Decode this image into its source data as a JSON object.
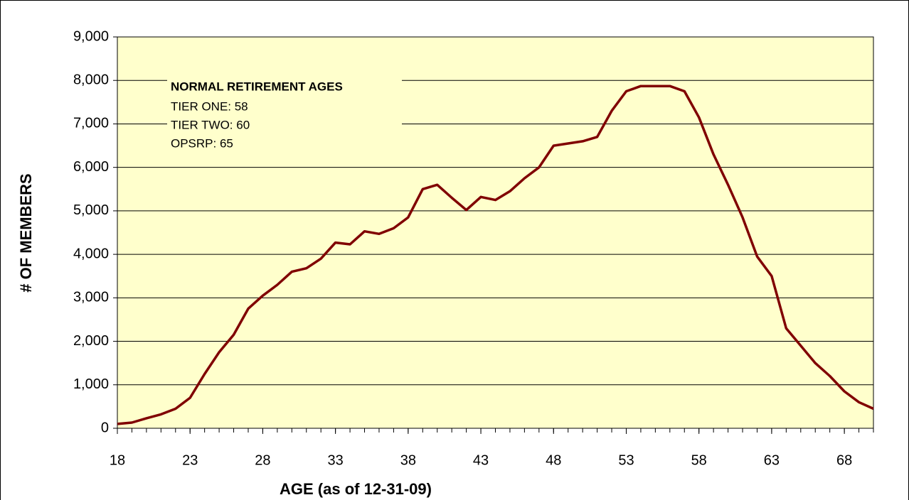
{
  "chart_data": {
    "type": "line",
    "x_label": "AGE (as of 12-31-09)",
    "y_label": "# OF MEMBERS",
    "annotation": {
      "title": "NORMAL RETIREMENT AGES",
      "lines": [
        "TIER ONE: 58",
        "TIER TWO: 60",
        "OPSRP: 65"
      ]
    },
    "x": [
      18,
      19,
      20,
      21,
      22,
      23,
      24,
      25,
      26,
      27,
      28,
      29,
      30,
      31,
      32,
      33,
      34,
      35,
      36,
      37,
      38,
      39,
      40,
      41,
      42,
      43,
      44,
      45,
      46,
      47,
      48,
      49,
      50,
      51,
      52,
      53,
      54,
      55,
      56,
      57,
      58,
      59,
      60,
      61,
      62,
      63,
      64,
      65,
      66,
      67,
      68,
      69,
      70
    ],
    "series": [
      {
        "name": "Members",
        "color": "#800000",
        "values": [
          100,
          130,
          230,
          320,
          450,
          700,
          1250,
          1750,
          2150,
          2750,
          3050,
          3300,
          3600,
          3680,
          3900,
          4270,
          4230,
          4530,
          4470,
          4600,
          4850,
          5500,
          5600,
          5300,
          5020,
          5320,
          5250,
          5450,
          5750,
          6000,
          6500,
          6550,
          6600,
          6700,
          7300,
          7750,
          7870,
          7870,
          7870,
          7750,
          7150,
          6300,
          5600,
          4850,
          3950,
          3500,
          2300,
          1900,
          1500,
          1200,
          850,
          600,
          450
        ]
      }
    ],
    "xlim": [
      18,
      70
    ],
    "xticks": [
      18,
      23,
      28,
      33,
      38,
      43,
      48,
      53,
      58,
      63,
      68
    ],
    "ylim": [
      0,
      9000
    ],
    "yticks": [
      0,
      {
        "value": 1000,
        "label": "1,000"
      },
      {
        "value": 2000,
        "label": "2,000"
      },
      {
        "value": 3000,
        "label": "3,000"
      },
      {
        "value": 4000,
        "label": "4,000"
      },
      {
        "value": 5000,
        "label": "5,000"
      },
      {
        "value": 6000,
        "label": "6,000"
      },
      {
        "value": 7000,
        "label": "7,000"
      },
      {
        "value": 8000,
        "label": "8,000"
      },
      {
        "value": 9000,
        "label": "9,000"
      }
    ],
    "grid": true,
    "background": "#ffffcc"
  }
}
